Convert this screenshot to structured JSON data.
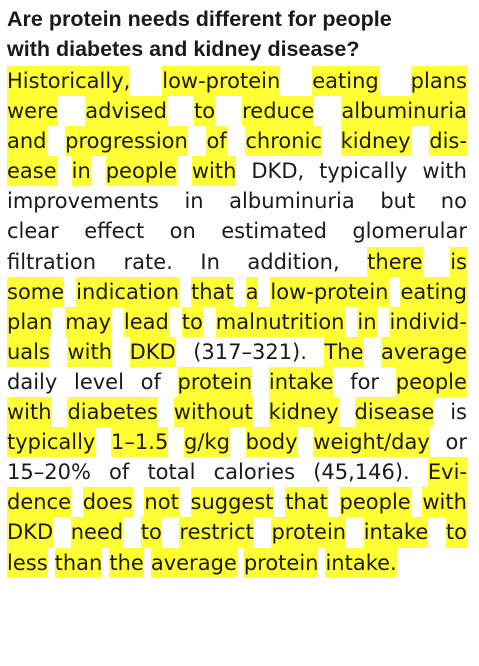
{
  "heading": [
    "Are protein needs different for people",
    "with diabetes and kidney disease?"
  ],
  "lines": [
    [
      [
        "Historically,",
        1
      ],
      [
        "low-protein",
        1
      ],
      [
        "eating",
        1
      ],
      [
        "plans",
        1
      ]
    ],
    [
      [
        "were",
        1
      ],
      [
        "advised",
        1
      ],
      [
        "to",
        1
      ],
      [
        "reduce",
        1
      ],
      [
        "albuminuria",
        1
      ]
    ],
    [
      [
        "and",
        1
      ],
      [
        "progression",
        1
      ],
      [
        "of",
        1
      ],
      [
        "chronic",
        1
      ],
      [
        "kidney",
        1
      ],
      [
        "dis-",
        1
      ]
    ],
    [
      [
        "ease",
        1
      ],
      [
        "in",
        1
      ],
      [
        "people",
        1
      ],
      [
        "with",
        1
      ],
      [
        "DKD,",
        0
      ],
      [
        "typically",
        0
      ],
      [
        "with",
        0
      ]
    ],
    [
      [
        "improvements",
        0
      ],
      [
        "in",
        0
      ],
      [
        "albuminuria",
        0
      ],
      [
        "but",
        0
      ],
      [
        "no",
        0
      ]
    ],
    [
      [
        "clear",
        0
      ],
      [
        "effect",
        0
      ],
      [
        "on",
        0
      ],
      [
        "estimated",
        0
      ],
      [
        "glomerular",
        0
      ]
    ],
    [
      [
        "filtration",
        0
      ],
      [
        "rate.",
        0
      ],
      [
        "In",
        0
      ],
      [
        "addition,",
        0
      ],
      [
        "there",
        1
      ],
      [
        "is",
        1
      ]
    ],
    [
      [
        "some",
        1
      ],
      [
        "indication",
        1
      ],
      [
        "that",
        1
      ],
      [
        "a",
        1
      ],
      [
        "low-protein",
        1
      ],
      [
        "eating",
        1
      ]
    ],
    [
      [
        "plan",
        1
      ],
      [
        "may",
        1
      ],
      [
        "lead",
        1
      ],
      [
        "to",
        1
      ],
      [
        "malnutrition",
        1
      ],
      [
        "in",
        1
      ],
      [
        "individ-",
        1
      ]
    ],
    [
      [
        "uals",
        1
      ],
      [
        "with",
        1
      ],
      [
        "DKD",
        1
      ],
      [
        "(317–321).",
        0
      ],
      [
        "The",
        1
      ],
      [
        "average",
        1
      ]
    ],
    [
      [
        "daily",
        0
      ],
      [
        "level",
        0
      ],
      [
        "of",
        0
      ],
      [
        "protein",
        1
      ],
      [
        "intake",
        1
      ],
      [
        "for",
        0
      ],
      [
        "people",
        1
      ]
    ],
    [
      [
        "with",
        1
      ],
      [
        "diabetes",
        1
      ],
      [
        "without",
        1
      ],
      [
        "kidney",
        1
      ],
      [
        "disease",
        1
      ],
      [
        "is",
        0
      ]
    ],
    [
      [
        "typically",
        1
      ],
      [
        "1–1.5",
        1
      ],
      [
        "g/kg",
        1
      ],
      [
        "body",
        1
      ],
      [
        "weight/day",
        1
      ],
      [
        "or",
        0
      ]
    ],
    [
      [
        "15–20%",
        0
      ],
      [
        "of",
        0
      ],
      [
        "total",
        0
      ],
      [
        "calories",
        0
      ],
      [
        "(45,146).",
        0
      ],
      [
        "Evi-",
        1
      ]
    ],
    [
      [
        "dence",
        1
      ],
      [
        "does",
        1
      ],
      [
        "not",
        1
      ],
      [
        "suggest",
        1
      ],
      [
        "that",
        1
      ],
      [
        "people",
        1
      ],
      [
        "with",
        1
      ]
    ],
    [
      [
        "DKD",
        1
      ],
      [
        "need",
        1
      ],
      [
        "to",
        1
      ],
      [
        "restrict",
        1
      ],
      [
        "protein",
        1
      ],
      [
        "intake",
        1
      ],
      [
        "to",
        1
      ]
    ],
    [
      [
        "less",
        1
      ],
      [
        "than",
        1
      ],
      [
        "the",
        1
      ],
      [
        "average",
        1
      ],
      [
        "protein",
        1
      ],
      [
        "intake.",
        1
      ]
    ]
  ],
  "colors": {
    "highlight": "#ffff33",
    "text": "#1a1a1a",
    "background": "#ffffff"
  }
}
